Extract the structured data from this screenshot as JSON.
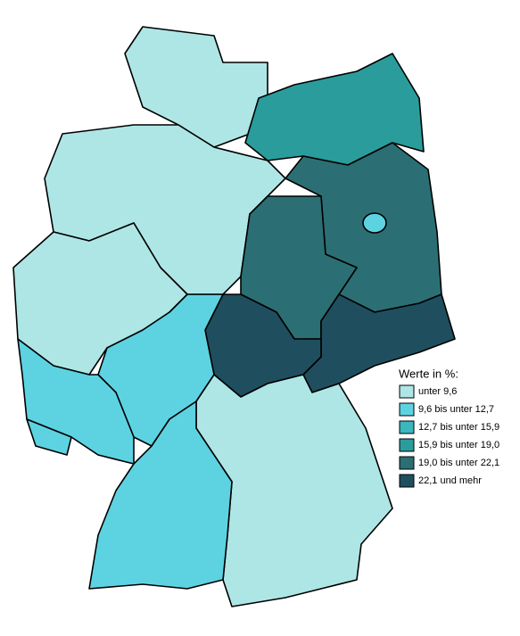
{
  "legend": {
    "title": "Werte in %:",
    "items": [
      {
        "label": "unter 9,6",
        "color": "#aee6e6"
      },
      {
        "label": "9,6 bis unter 12,7",
        "color": "#5dd3e2"
      },
      {
        "label": "12,7 bis unter 15,9",
        "color": "#3ab8c0"
      },
      {
        "label": "15,9 bis unter 19,0",
        "color": "#2a9c9c"
      },
      {
        "label": "19,0 bis unter 22,1",
        "color": "#2b6f74"
      },
      {
        "label": "22,1 und mehr",
        "color": "#1f4f5f"
      }
    ]
  }
}
